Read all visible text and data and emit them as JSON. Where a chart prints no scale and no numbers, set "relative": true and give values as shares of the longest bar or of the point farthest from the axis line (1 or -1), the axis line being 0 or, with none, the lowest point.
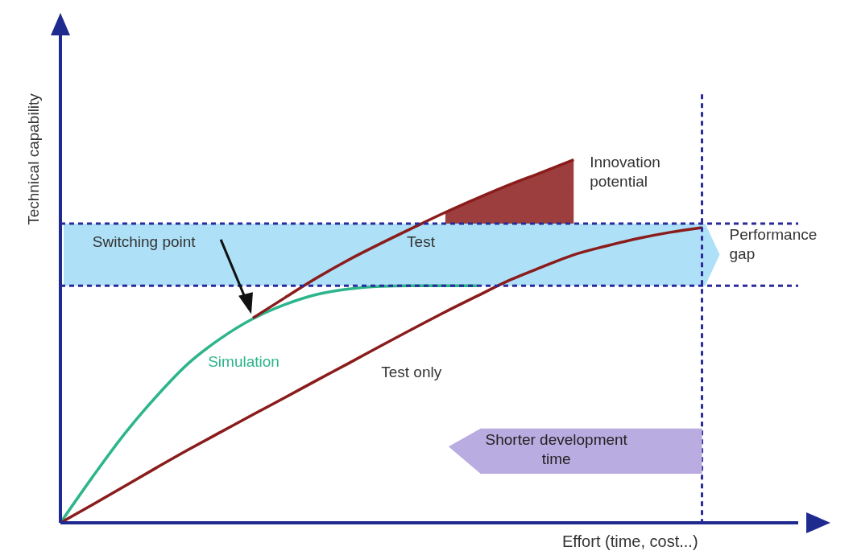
{
  "chart_data": {
    "type": "line",
    "relative": true,
    "xlabel": "Effort (time, cost...)",
    "ylabel": "Technical capability",
    "categories": [
      null,
      null,
      null,
      null,
      null,
      null,
      null,
      null,
      null,
      null,
      null,
      null,
      null,
      null,
      null,
      null,
      null,
      null,
      null,
      null,
      null,
      null,
      null,
      null
    ],
    "series": [
      {
        "name": "Simulation",
        "color": "#2db58c",
        "values": [
          0,
          0.126,
          0.245,
          0.349,
          0.44,
          0.508,
          0.562,
          0.601,
          0.629,
          0.644,
          0.651,
          0.653,
          0.653,
          0.653,
          null,
          null,
          null,
          null,
          null,
          null,
          null,
          null,
          null,
          null
        ]
      },
      {
        "name": "Test",
        "color": "#8b1c1c",
        "values": [
          null,
          null,
          null,
          null,
          null,
          null,
          0.564,
          0.62,
          0.675,
          0.725,
          0.77,
          0.813,
          0.855,
          0.894,
          0.931,
          0.965,
          1,
          null,
          null,
          null,
          null,
          null,
          null,
          null
        ],
        "lower": [
          null,
          null,
          null,
          null,
          null,
          null,
          null,
          null,
          null,
          null,
          null,
          null,
          0.824,
          0.824,
          0.824,
          0.824,
          0.824,
          null,
          null,
          null,
          null,
          null,
          null,
          null
        ],
        "upper": [
          null,
          null,
          null,
          null,
          null,
          null,
          null,
          null,
          null,
          null,
          null,
          null,
          0.855,
          0.894,
          0.931,
          0.965,
          1,
          null,
          null,
          null,
          null,
          null,
          null,
          null
        ]
      },
      {
        "name": "Test only",
        "color": "#8b1c1c",
        "values": [
          0,
          0.05,
          0.101,
          0.152,
          0.202,
          0.25,
          0.298,
          0.345,
          0.393,
          0.44,
          0.488,
          0.535,
          0.581,
          0.625,
          0.668,
          0.704,
          0.738,
          0.762,
          0.783,
          0.8,
          0.813,
          null,
          null,
          null
        ]
      }
    ],
    "bands": [
      {
        "axis": "y",
        "from": 0.653,
        "to": 0.824,
        "label": "Performance gap",
        "color": "#aee0f7"
      }
    ],
    "ref_lines": [
      {
        "axis": "y",
        "value": 0.824,
        "line_style": "dashed",
        "color": "#2a2a9a"
      },
      {
        "axis": "y",
        "value": 0.653,
        "line_style": "dashed",
        "color": "#2a2a9a"
      }
    ],
    "annotations": [
      "Innovation potential",
      "Switching point",
      "Shorter development time"
    ],
    "grid": false,
    "legend": false,
    "marker": "none",
    "line_style": "solid"
  }
}
